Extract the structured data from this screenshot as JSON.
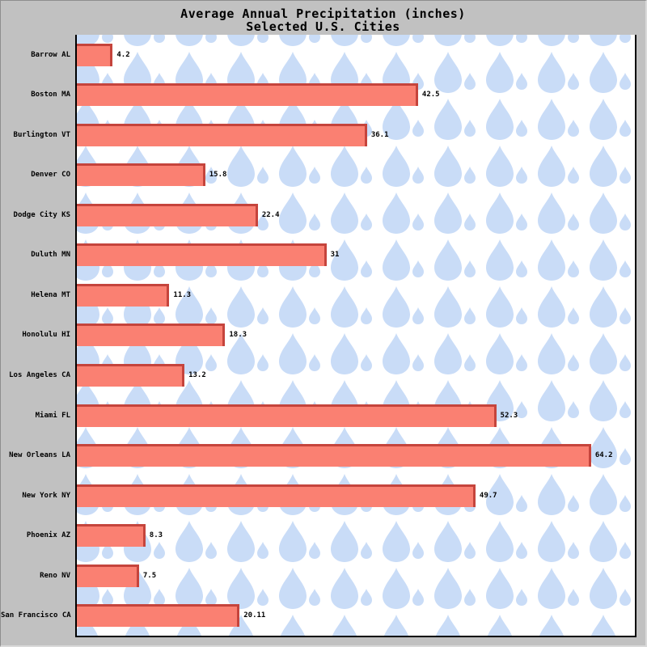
{
  "window": {
    "background_color": "#C1C1C1"
  },
  "chart_data": {
    "type": "bar",
    "orientation": "horizontal",
    "title": "Average Annual Precipitation (inches)",
    "subtitle": "Selected U.S. Cities",
    "categories": [
      "Barrow AL",
      "Boston MA",
      "Burlington VT",
      "Denver CO",
      "Dodge City KS",
      "Duluth MN",
      "Helena MT",
      "Honolulu HI",
      "Los Angeles CA",
      "Miami FL",
      "New Orleans LA",
      "New York NY",
      "Phoenix AZ",
      "Reno NV",
      "San Francisco CA"
    ],
    "values": [
      4.2,
      42.5,
      36.1,
      15.8,
      22.4,
      31,
      11.3,
      18.3,
      13.2,
      52.3,
      64.2,
      49.7,
      8.3,
      7.5,
      20.11
    ],
    "value_labels": [
      "4.2",
      "42.5",
      "36.1",
      "15.8",
      "22.4",
      "31",
      "11.3",
      "18.3",
      "13.2",
      "52.3",
      "64.2",
      "49.7",
      "8.3",
      "7.5",
      "20.11"
    ],
    "xlim": [
      0,
      70.2
    ],
    "grid": false,
    "legend": false,
    "bar_color": "#FA8072",
    "bar_edge_color": "#C5443C",
    "plot_background": "#FFFFFF",
    "pattern": "raindrops",
    "pattern_color": "#C9DCF7"
  }
}
